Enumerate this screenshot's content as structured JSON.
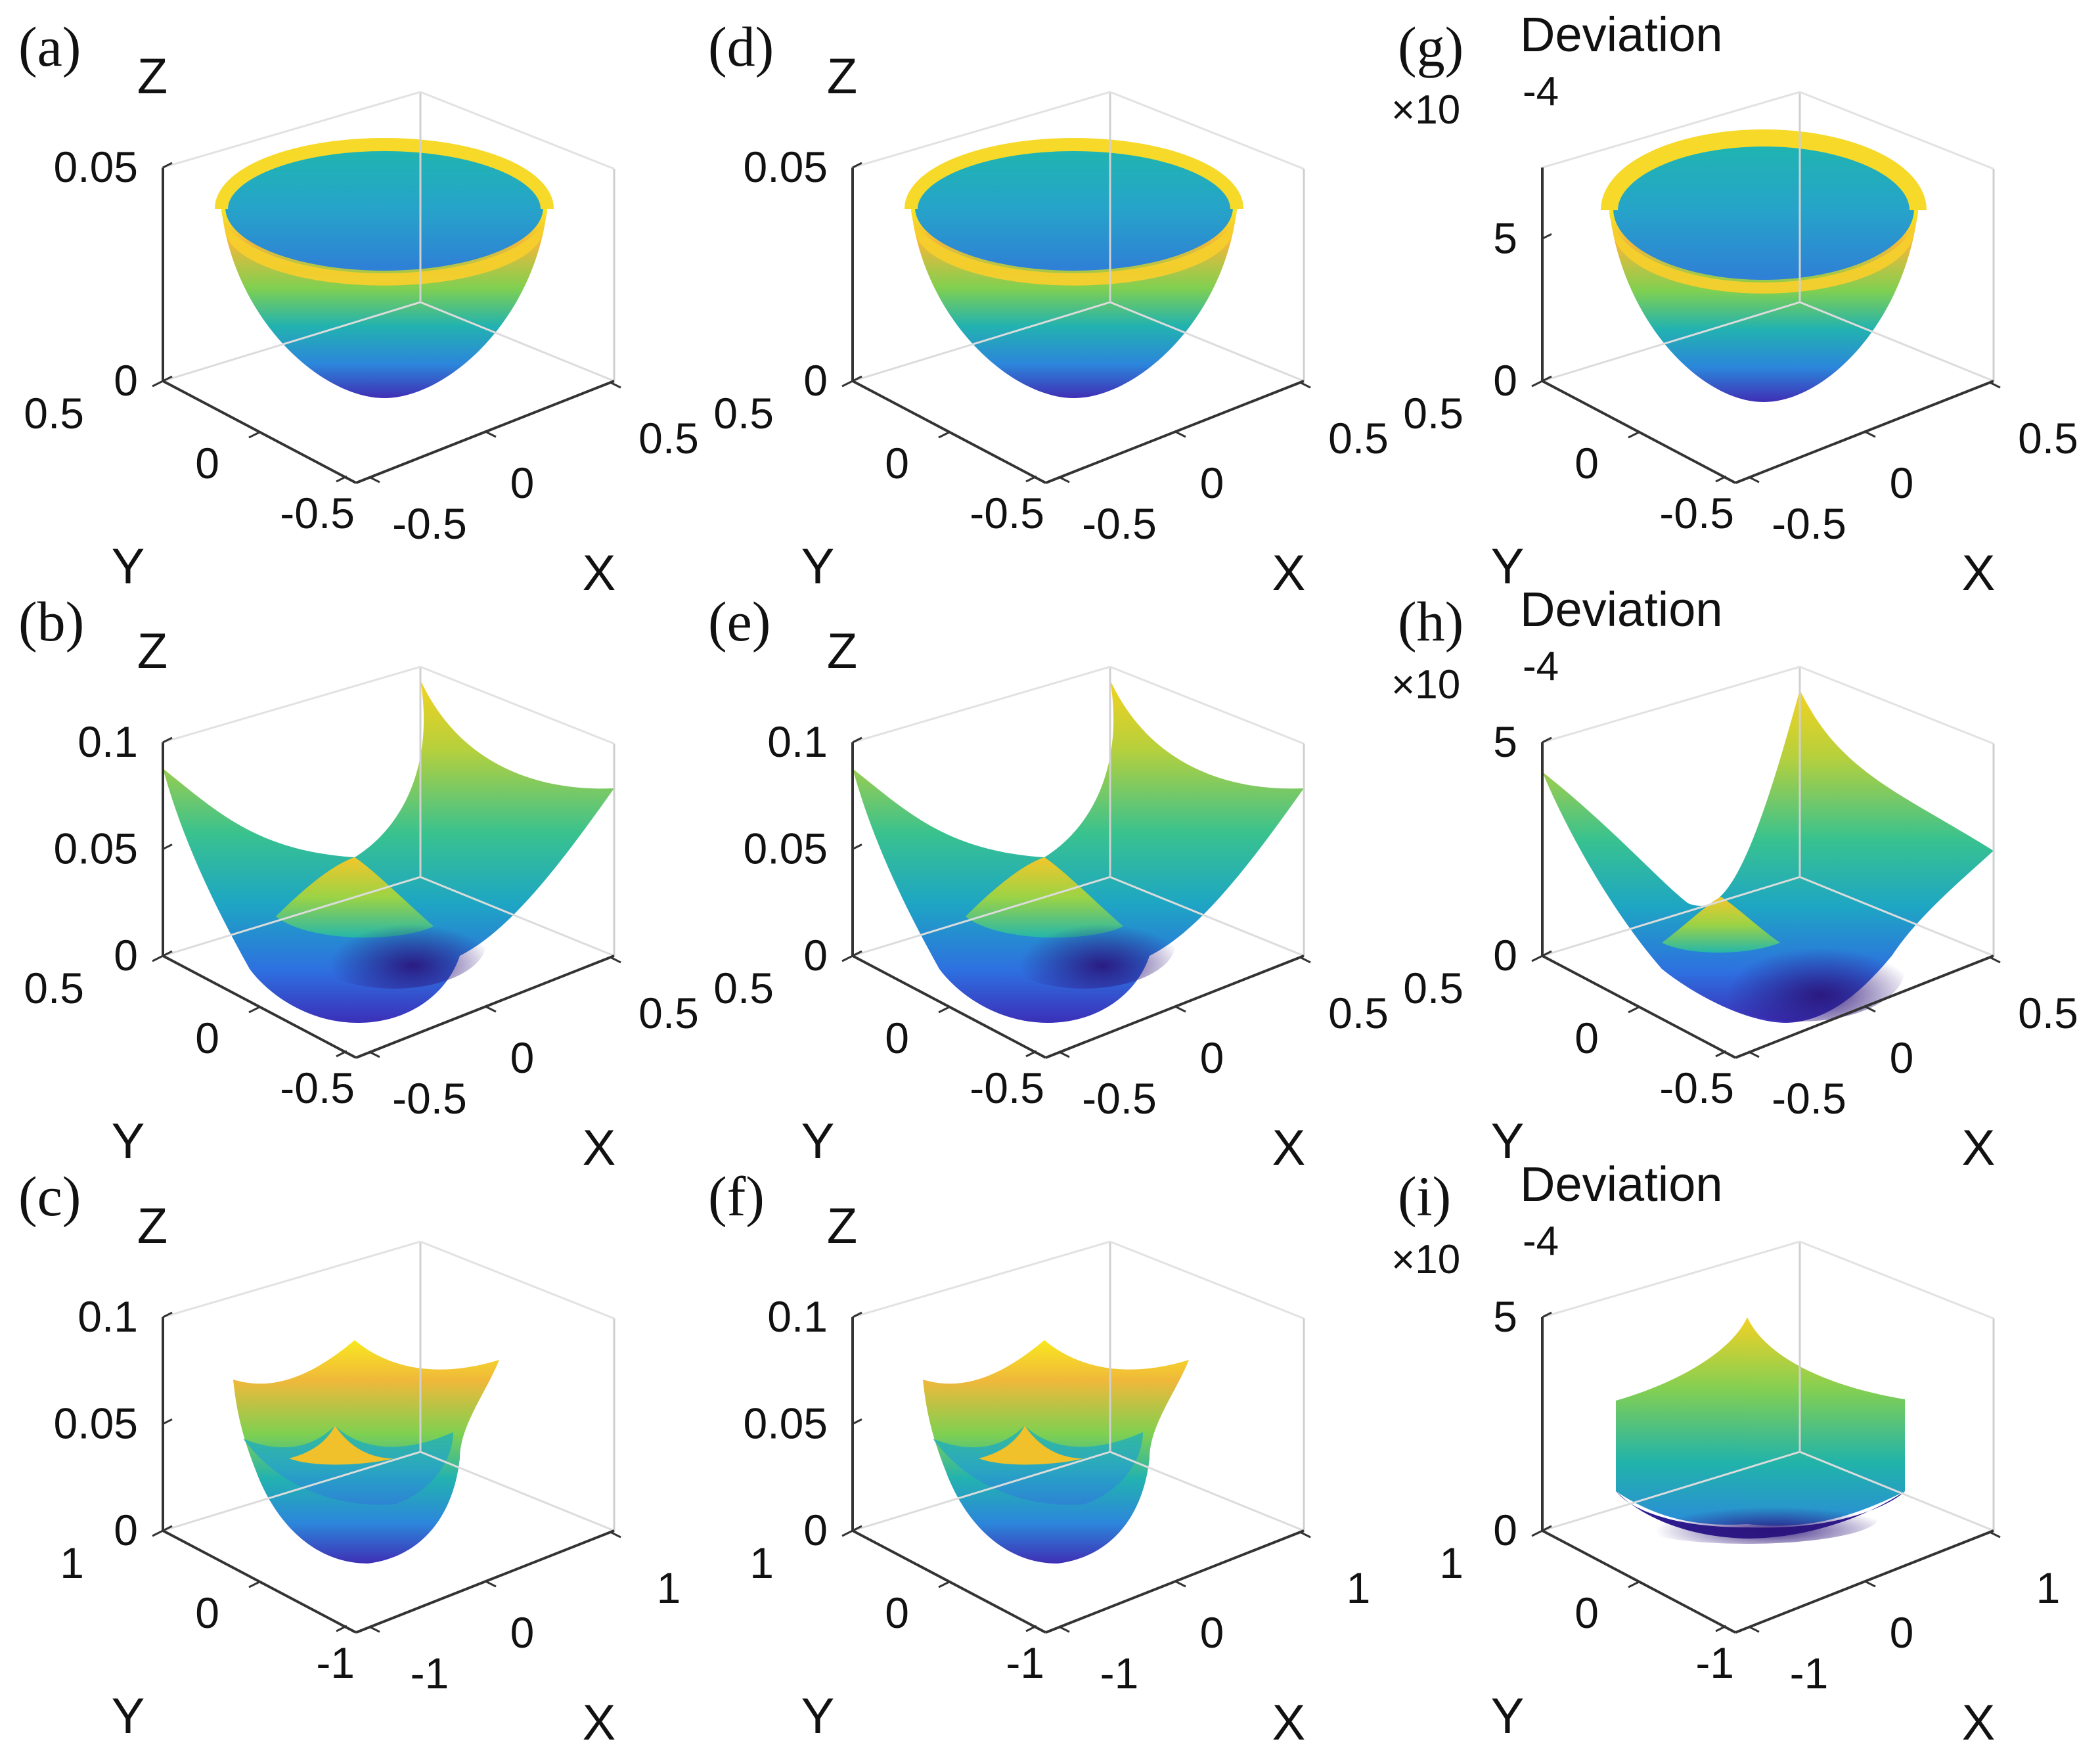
{
  "chart_data": [
    {
      "type": "surface3d",
      "id": "a",
      "panel": "(a)",
      "title": "",
      "shape": "paraboloid-circular",
      "xlabel": "X",
      "ylabel": "Y",
      "zlabel": "Z",
      "xticks": [
        "-0.5",
        "0",
        "0.5"
      ],
      "yticks": [
        "-0.5",
        "0",
        "0.5"
      ],
      "zticks": [
        "0",
        "0.05"
      ],
      "xlim": [
        -0.5,
        0.5
      ],
      "ylim": [
        -0.5,
        0.5
      ],
      "zlim": [
        0,
        0.05
      ],
      "multiplier": ""
    },
    {
      "type": "surface3d",
      "id": "b",
      "panel": "(b)",
      "title": "",
      "shape": "paraboloid-square",
      "xlabel": "X",
      "ylabel": "Y",
      "zlabel": "Z",
      "xticks": [
        "-0.5",
        "0",
        "0.5"
      ],
      "yticks": [
        "-0.5",
        "0",
        "0.5"
      ],
      "zticks": [
        "0",
        "0.05",
        "0.1"
      ],
      "xlim": [
        -0.5,
        0.5
      ],
      "ylim": [
        -0.5,
        0.5
      ],
      "zlim": [
        0,
        0.1
      ],
      "multiplier": ""
    },
    {
      "type": "surface3d",
      "id": "c",
      "panel": "(c)",
      "title": "",
      "shape": "paraboloid-square-large",
      "xlabel": "X",
      "ylabel": "Y",
      "zlabel": "Z",
      "xticks": [
        "-1",
        "0",
        "1"
      ],
      "yticks": [
        "-1",
        "0",
        "1"
      ],
      "zticks": [
        "0",
        "0.05",
        "0.1"
      ],
      "xlim": [
        -1,
        1
      ],
      "ylim": [
        -1,
        1
      ],
      "zlim": [
        0,
        0.1
      ],
      "multiplier": ""
    },
    {
      "type": "surface3d",
      "id": "d",
      "panel": "(d)",
      "title": "",
      "shape": "paraboloid-circular",
      "xlabel": "X",
      "ylabel": "Y",
      "zlabel": "Z",
      "xticks": [
        "-0.5",
        "0",
        "0.5"
      ],
      "yticks": [
        "-0.5",
        "0",
        "0.5"
      ],
      "zticks": [
        "0",
        "0.05"
      ],
      "xlim": [
        -0.5,
        0.5
      ],
      "ylim": [
        -0.5,
        0.5
      ],
      "zlim": [
        0,
        0.05
      ],
      "multiplier": ""
    },
    {
      "type": "surface3d",
      "id": "e",
      "panel": "(e)",
      "title": "",
      "shape": "paraboloid-square",
      "xlabel": "X",
      "ylabel": "Y",
      "zlabel": "Z",
      "xticks": [
        "-0.5",
        "0",
        "0.5"
      ],
      "yticks": [
        "-0.5",
        "0",
        "0.5"
      ],
      "zticks": [
        "0",
        "0.05",
        "0.1"
      ],
      "xlim": [
        -0.5,
        0.5
      ],
      "ylim": [
        -0.5,
        0.5
      ],
      "zlim": [
        0,
        0.1
      ],
      "multiplier": ""
    },
    {
      "type": "surface3d",
      "id": "f",
      "panel": "(f)",
      "title": "",
      "shape": "paraboloid-square-large",
      "xlabel": "X",
      "ylabel": "Y",
      "zlabel": "Z",
      "xticks": [
        "-1",
        "0",
        "1"
      ],
      "yticks": [
        "-1",
        "0",
        "1"
      ],
      "zticks": [
        "0",
        "0.05",
        "0.1"
      ],
      "xlim": [
        -1,
        1
      ],
      "ylim": [
        -1,
        1
      ],
      "zlim": [
        0,
        0.1
      ],
      "multiplier": ""
    },
    {
      "type": "surface3d",
      "id": "g",
      "panel": "(g)",
      "title": "Deviation",
      "shape": "deviation-circular",
      "xlabel": "X",
      "ylabel": "Y",
      "zlabel": "",
      "xticks": [
        "-0.5",
        "0",
        "0.5"
      ],
      "yticks": [
        "-0.5",
        "0",
        "0.5"
      ],
      "zticks": [
        "0",
        "5"
      ],
      "xlim": [
        -0.5,
        0.5
      ],
      "ylim": [
        -0.5,
        0.5
      ],
      "zlim": [
        0,
        7.5
      ],
      "multiplier": "×10",
      "multiplier_exp": "-4"
    },
    {
      "type": "surface3d",
      "id": "h",
      "panel": "(h)",
      "title": "Deviation",
      "shape": "deviation-tilted",
      "xlabel": "X",
      "ylabel": "Y",
      "zlabel": "",
      "xticks": [
        "-0.5",
        "0",
        "0.5"
      ],
      "yticks": [
        "-0.5",
        "0",
        "0.5"
      ],
      "zticks": [
        "0",
        "5"
      ],
      "xlim": [
        -0.5,
        0.5
      ],
      "ylim": [
        -0.5,
        0.5
      ],
      "zlim": [
        0,
        5
      ],
      "multiplier": "×10",
      "multiplier_exp": "-4"
    },
    {
      "type": "surface3d",
      "id": "i",
      "panel": "(i)",
      "title": "Deviation",
      "shape": "deviation-walls",
      "xlabel": "X",
      "ylabel": "Y",
      "zlabel": "",
      "xticks": [
        "-1",
        "0",
        "1"
      ],
      "yticks": [
        "-1",
        "0",
        "1"
      ],
      "zticks": [
        "0",
        "5"
      ],
      "xlim": [
        -1,
        1
      ],
      "ylim": [
        -1,
        1
      ],
      "zlim": [
        0,
        5
      ],
      "multiplier": "×10",
      "multiplier_exp": "-4"
    }
  ],
  "colors": {
    "surface_low": "#3b2fb8",
    "surface_mid": "#1fb5ad",
    "surface_high": "#f2c623",
    "surface_rim": "#f9e820",
    "axes": "#333333",
    "grid": "#d9d9d9",
    "text": "#111111"
  }
}
